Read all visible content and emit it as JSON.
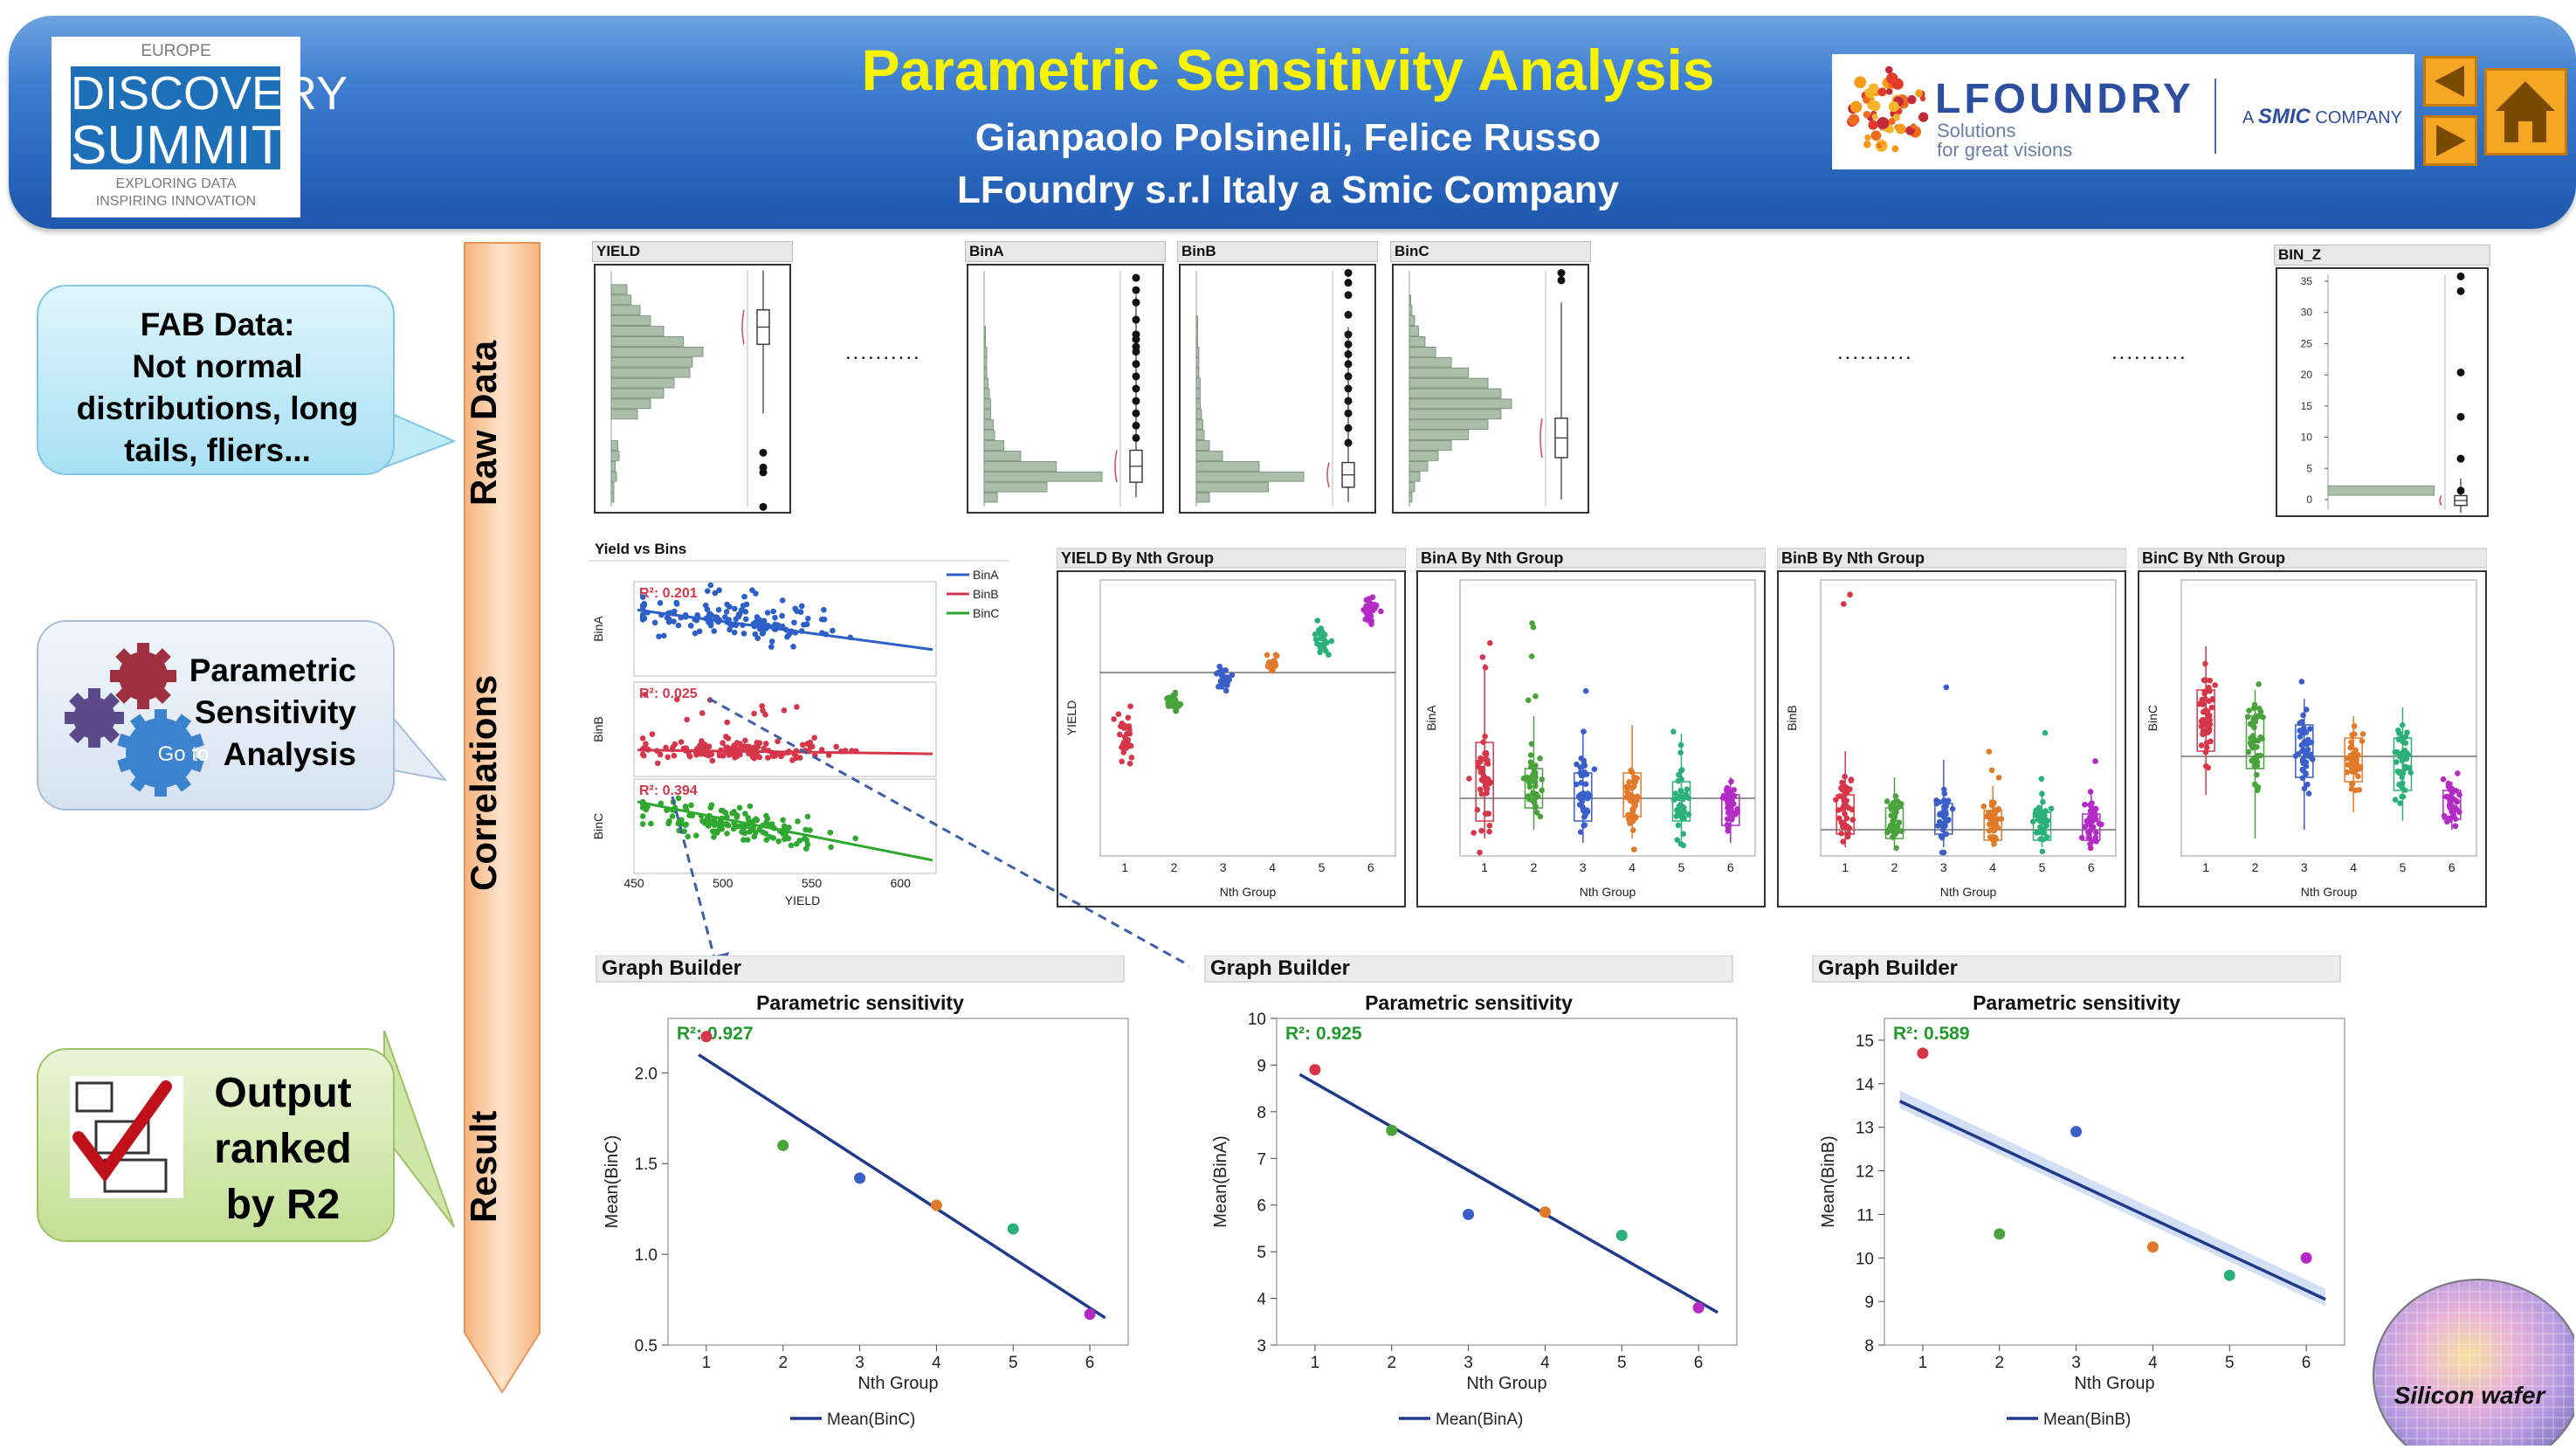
{
  "header": {
    "title": "Parametric Sensitivity Analysis",
    "authors": "Gianpaolo Polsinelli, Felice Russo",
    "affiliation": "LFoundry s.r.l Italy a Smic Company",
    "summit_logo": {
      "region": "EUROPE",
      "line1": "DISCOVERY",
      "line2": "SUMMIT",
      "tag1": "EXPLORING DATA",
      "tag2": "INSPIRING INNOVATION"
    },
    "company_logo": {
      "name": "LFOUNDRY",
      "tagline1": "Solutions",
      "tagline2": "for great visions",
      "smic_a": "A",
      "smic": "SMIC",
      "smic_company": "COMPANY"
    }
  },
  "nav": {
    "back_icon": "triangle-left-icon",
    "forward_icon": "triangle-right-icon",
    "home_icon": "house-icon"
  },
  "bubbles": {
    "fab": "FAB Data: Not normal distributions, long tails, fliers...",
    "fab_lines": [
      "FAB Data:",
      "Not normal",
      "distributions, long",
      "tails, fliers..."
    ],
    "param_lines": [
      "Parametric",
      "Sensitivity",
      "Analysis"
    ],
    "goto": "Go to",
    "output_lines": [
      "Output",
      "ranked",
      "by R2"
    ]
  },
  "stages": [
    "Raw Data",
    "Correlations",
    "Result"
  ],
  "raw_data": {
    "titles": [
      "YIELD",
      "BinA",
      "BinB",
      "BinC",
      "BIN_Z"
    ],
    "ellipsis": "..........",
    "binz_ticks": [
      "35",
      "30",
      "25",
      "20",
      "15",
      "10",
      "5",
      "0"
    ]
  },
  "correlations": {
    "yield_vs_bins": {
      "title": "Yield vs Bins",
      "legend": [
        "BinA",
        "BinB",
        "BinC"
      ],
      "rows": [
        "BinA",
        "BinB",
        "BinC"
      ],
      "r2": [
        "R²: 0.201",
        "R²: 0.025",
        "R²: 0.394"
      ],
      "x_ticks": [
        "450",
        "500",
        "550",
        "600"
      ],
      "xlabel": "YIELD"
    },
    "nth_panels": [
      {
        "title": "YIELD By Nth Group",
        "ylabel": "YIELD"
      },
      {
        "title": "BinA By Nth Group",
        "ylabel": "BinA"
      },
      {
        "title": "BinB By Nth Group",
        "ylabel": "BinB"
      },
      {
        "title": "BinC By Nth Group",
        "ylabel": "BinC"
      }
    ],
    "nth_xlabel": "Nth Group",
    "nth_ticks": [
      "1",
      "2",
      "3",
      "4",
      "5",
      "6"
    ]
  },
  "colors": {
    "g1": "#d6364a",
    "g2": "#4aa23c",
    "g3": "#3c5ec9",
    "g4": "#e07a2a",
    "g5": "#2bb07a",
    "g6": "#b32bc4",
    "fit": "#1f3a8a",
    "hist": "#a9bfa9",
    "bin_a": "#2c5fc7",
    "bin_b": "#d6364a",
    "bin_c": "#2ea82e"
  },
  "chart_data": [
    {
      "type": "scatter",
      "panel_title": "Graph Builder",
      "title": "Parametric sensitivity",
      "xlabel": "Nth Group",
      "ylabel": "Mean(BinC)",
      "r2_label": "R²: 0.927",
      "legend": [
        "Mean(BinC)"
      ],
      "x": [
        1,
        2,
        3,
        4,
        5,
        6
      ],
      "values": [
        2.2,
        1.6,
        1.42,
        1.27,
        1.14,
        0.67
      ],
      "fit": [
        [
          0.9,
          2.1
        ],
        [
          6.2,
          0.65
        ]
      ],
      "xlim": [
        0.5,
        6.5
      ],
      "ylim": [
        0.5,
        2.3
      ],
      "y_ticks": [
        0.5,
        1.0,
        1.5,
        2.0
      ],
      "y_tick_labels": [
        "0.5",
        "1.0",
        "1.5",
        "2.0"
      ]
    },
    {
      "type": "scatter",
      "panel_title": "Graph Builder",
      "title": "Parametric sensitivity",
      "xlabel": "Nth Group",
      "ylabel": "Mean(BinA)",
      "r2_label": "R²: 0.925",
      "legend": [
        "Mean(BinA)"
      ],
      "x": [
        1,
        2,
        3,
        4,
        5,
        6
      ],
      "values": [
        8.9,
        7.6,
        5.8,
        5.85,
        5.35,
        3.8
      ],
      "fit": [
        [
          0.8,
          8.8
        ],
        [
          6.25,
          3.7
        ]
      ],
      "xlim": [
        0.5,
        6.5
      ],
      "ylim": [
        3,
        10
      ],
      "y_ticks": [
        3,
        4,
        5,
        6,
        7,
        8,
        9,
        10
      ],
      "y_tick_labels": [
        "3",
        "4",
        "5",
        "6",
        "7",
        "8",
        "9",
        "10"
      ]
    },
    {
      "type": "scatter",
      "panel_title": "Graph Builder",
      "title": "Parametric sensitivity",
      "xlabel": "Nth Group",
      "ylabel": "Mean(BinB)",
      "r2_label": "R²: 0.589",
      "legend": [
        "Mean(BinB)"
      ],
      "x": [
        1,
        2,
        3,
        4,
        5,
        6
      ],
      "values": [
        14.7,
        10.55,
        12.9,
        10.25,
        9.6,
        10.0
      ],
      "fit": [
        [
          0.7,
          13.6
        ],
        [
          6.25,
          9.05
        ]
      ],
      "xlim": [
        0.5,
        6.5
      ],
      "ylim": [
        8,
        15.5
      ],
      "y_ticks": [
        8,
        9,
        10,
        11,
        12,
        13,
        14,
        15
      ],
      "y_tick_labels": [
        "8",
        "9",
        "10",
        "11",
        "12",
        "13",
        "14",
        "15"
      ]
    }
  ],
  "wafer_label": "Silicon wafer"
}
